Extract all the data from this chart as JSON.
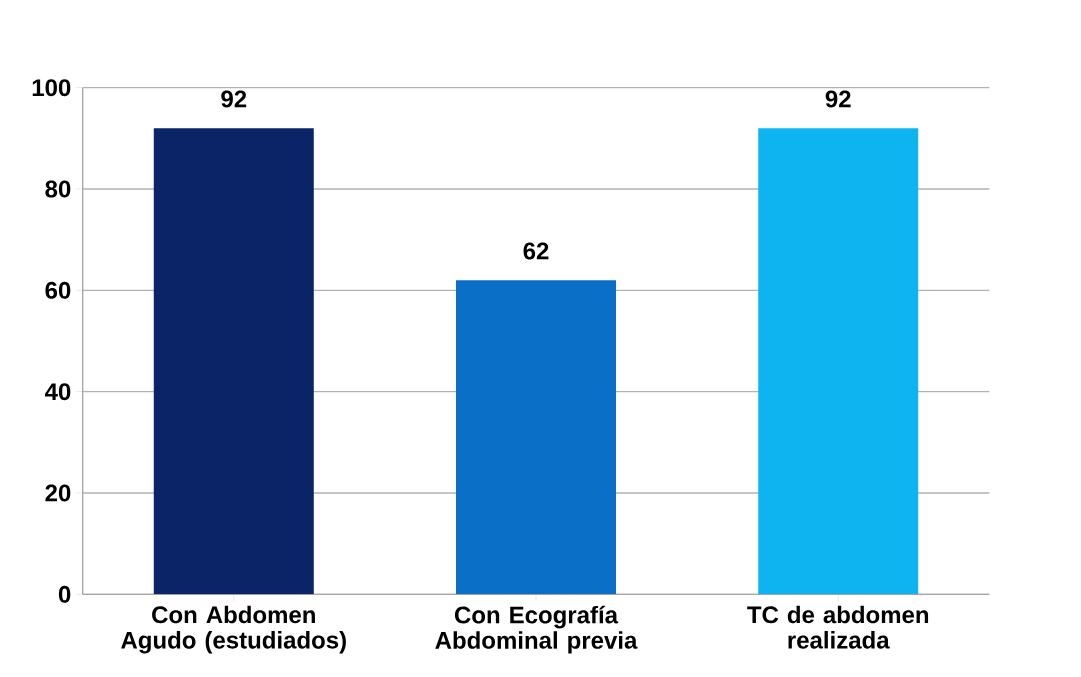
{
  "chart_data": {
    "type": "bar",
    "categories": [
      "Con Abdomen Agudo (estudiados)",
      "Con Ecografía Abdominal previa",
      "TC de abdomen realizada"
    ],
    "values": [
      92,
      62,
      92
    ],
    "colors": [
      "#0b2468",
      "#0a6fc6",
      "#0db4f0"
    ],
    "ylim": [
      0,
      100
    ],
    "yticks": [
      0,
      20,
      40,
      60,
      80,
      100
    ],
    "grid": "y",
    "data_labels": true
  }
}
